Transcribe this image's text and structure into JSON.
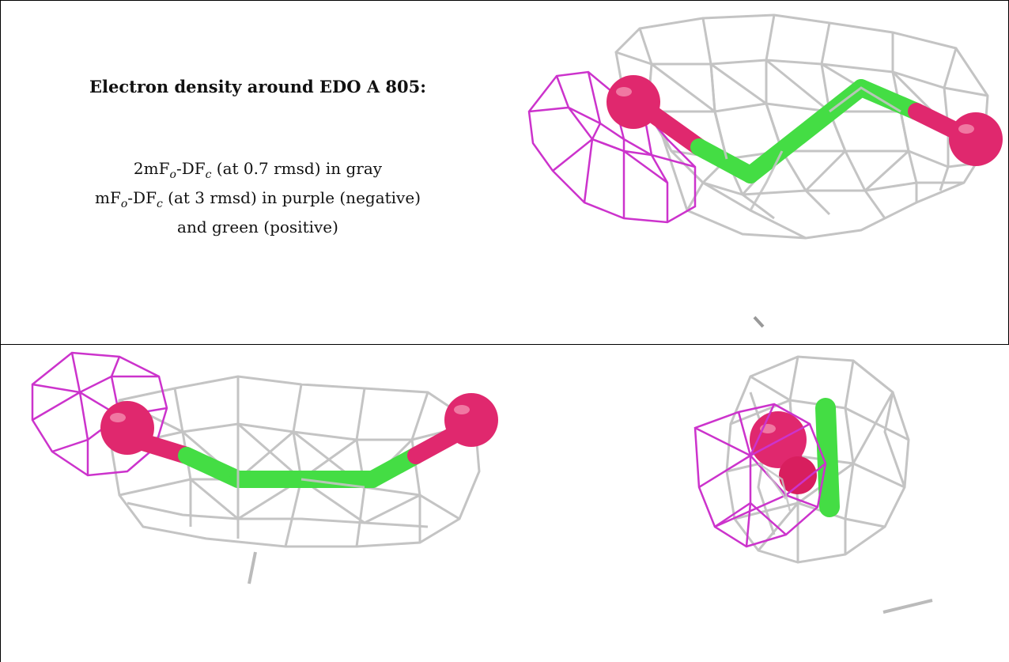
{
  "panel_text": {
    "title": "Electron density around EDO A 805:",
    "legend_line1": {
      "prefix": "2mF",
      "sub1": "o",
      "mid": "-DF",
      "sub2": "c",
      "suffix": " (at 0.7 rmsd) in gray"
    },
    "legend_line2": {
      "prefix": "mF",
      "sub1": "o",
      "mid": "-DF",
      "sub2": "c",
      "suffix": " (at 3 rmsd) in purple (negative)"
    },
    "legend_line3": "and green (positive)"
  },
  "colors": {
    "gray_mesh": "#c4c4c4",
    "purple_mesh": "#cc33cc",
    "oxygen": "#e0286e",
    "carbon_bond": "#44dd44"
  }
}
